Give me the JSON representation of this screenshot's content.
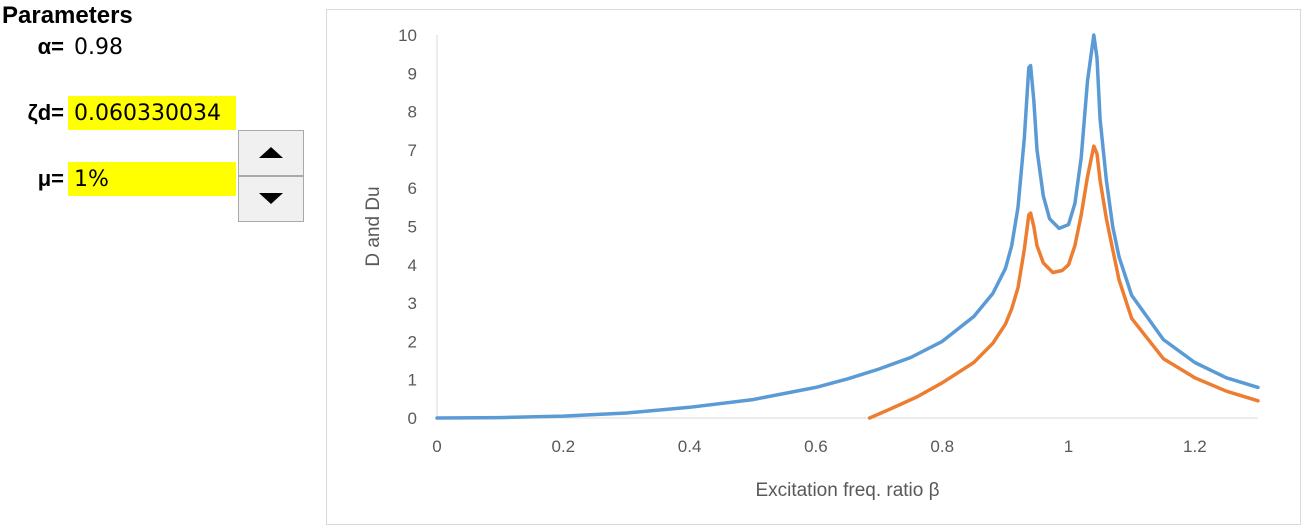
{
  "parameters": {
    "title": "Parameters",
    "alpha_label": "α=",
    "alpha_value": "0.98",
    "zeta_label": "ζd=",
    "zeta_value": "0.060330034",
    "mu_label": "μ=",
    "mu_value": "1%"
  },
  "spinner": {
    "up_icon": "triangle-up-icon",
    "down_icon": "triangle-down-icon"
  },
  "chart_data": {
    "type": "line",
    "title": "",
    "xlabel": "Excitation freq. ratio β",
    "ylabel": "D and Du",
    "xlim": [
      0,
      1.3
    ],
    "ylim": [
      0,
      10
    ],
    "x_ticks": [
      "0",
      "0.2",
      "0.4",
      "0.6",
      "0.8",
      "1",
      "1.2"
    ],
    "y_ticks": [
      "0",
      "1",
      "2",
      "3",
      "4",
      "5",
      "6",
      "7",
      "8",
      "9",
      "10"
    ],
    "grid": false,
    "legend": "none",
    "series": [
      {
        "color": "#5b9bd5",
        "points": [
          [
            0.0,
            0.0
          ],
          [
            0.1,
            0.01
          ],
          [
            0.2,
            0.05
          ],
          [
            0.3,
            0.13
          ],
          [
            0.4,
            0.28
          ],
          [
            0.5,
            0.48
          ],
          [
            0.6,
            0.8
          ],
          [
            0.65,
            1.02
          ],
          [
            0.7,
            1.28
          ],
          [
            0.75,
            1.58
          ],
          [
            0.8,
            2.0
          ],
          [
            0.85,
            2.65
          ],
          [
            0.88,
            3.25
          ],
          [
            0.9,
            3.9
          ],
          [
            0.91,
            4.5
          ],
          [
            0.92,
            5.5
          ],
          [
            0.93,
            7.3
          ],
          [
            0.937,
            9.15
          ],
          [
            0.94,
            9.2
          ],
          [
            0.945,
            8.3
          ],
          [
            0.95,
            7.0
          ],
          [
            0.96,
            5.8
          ],
          [
            0.97,
            5.2
          ],
          [
            0.985,
            4.95
          ],
          [
            1.0,
            5.05
          ],
          [
            1.01,
            5.6
          ],
          [
            1.02,
            6.8
          ],
          [
            1.03,
            8.8
          ],
          [
            1.04,
            10.0
          ],
          [
            1.045,
            9.4
          ],
          [
            1.05,
            7.8
          ],
          [
            1.06,
            6.2
          ],
          [
            1.07,
            5.0
          ],
          [
            1.08,
            4.2
          ],
          [
            1.1,
            3.2
          ],
          [
            1.15,
            2.05
          ],
          [
            1.2,
            1.45
          ],
          [
            1.25,
            1.05
          ],
          [
            1.3,
            0.8
          ]
        ]
      },
      {
        "color": "#ed7d31",
        "points": [
          [
            0.685,
            0.0
          ],
          [
            0.72,
            0.25
          ],
          [
            0.76,
            0.55
          ],
          [
            0.8,
            0.92
          ],
          [
            0.85,
            1.45
          ],
          [
            0.88,
            1.95
          ],
          [
            0.9,
            2.45
          ],
          [
            0.91,
            2.85
          ],
          [
            0.92,
            3.4
          ],
          [
            0.93,
            4.4
          ],
          [
            0.937,
            5.3
          ],
          [
            0.94,
            5.35
          ],
          [
            0.945,
            5.0
          ],
          [
            0.95,
            4.5
          ],
          [
            0.96,
            4.05
          ],
          [
            0.975,
            3.8
          ],
          [
            0.99,
            3.85
          ],
          [
            1.0,
            4.0
          ],
          [
            1.01,
            4.5
          ],
          [
            1.02,
            5.3
          ],
          [
            1.03,
            6.3
          ],
          [
            1.04,
            7.1
          ],
          [
            1.045,
            6.9
          ],
          [
            1.05,
            6.2
          ],
          [
            1.06,
            5.2
          ],
          [
            1.07,
            4.4
          ],
          [
            1.08,
            3.6
          ],
          [
            1.1,
            2.6
          ],
          [
            1.15,
            1.55
          ],
          [
            1.2,
            1.05
          ],
          [
            1.25,
            0.7
          ],
          [
            1.3,
            0.45
          ]
        ]
      }
    ]
  }
}
